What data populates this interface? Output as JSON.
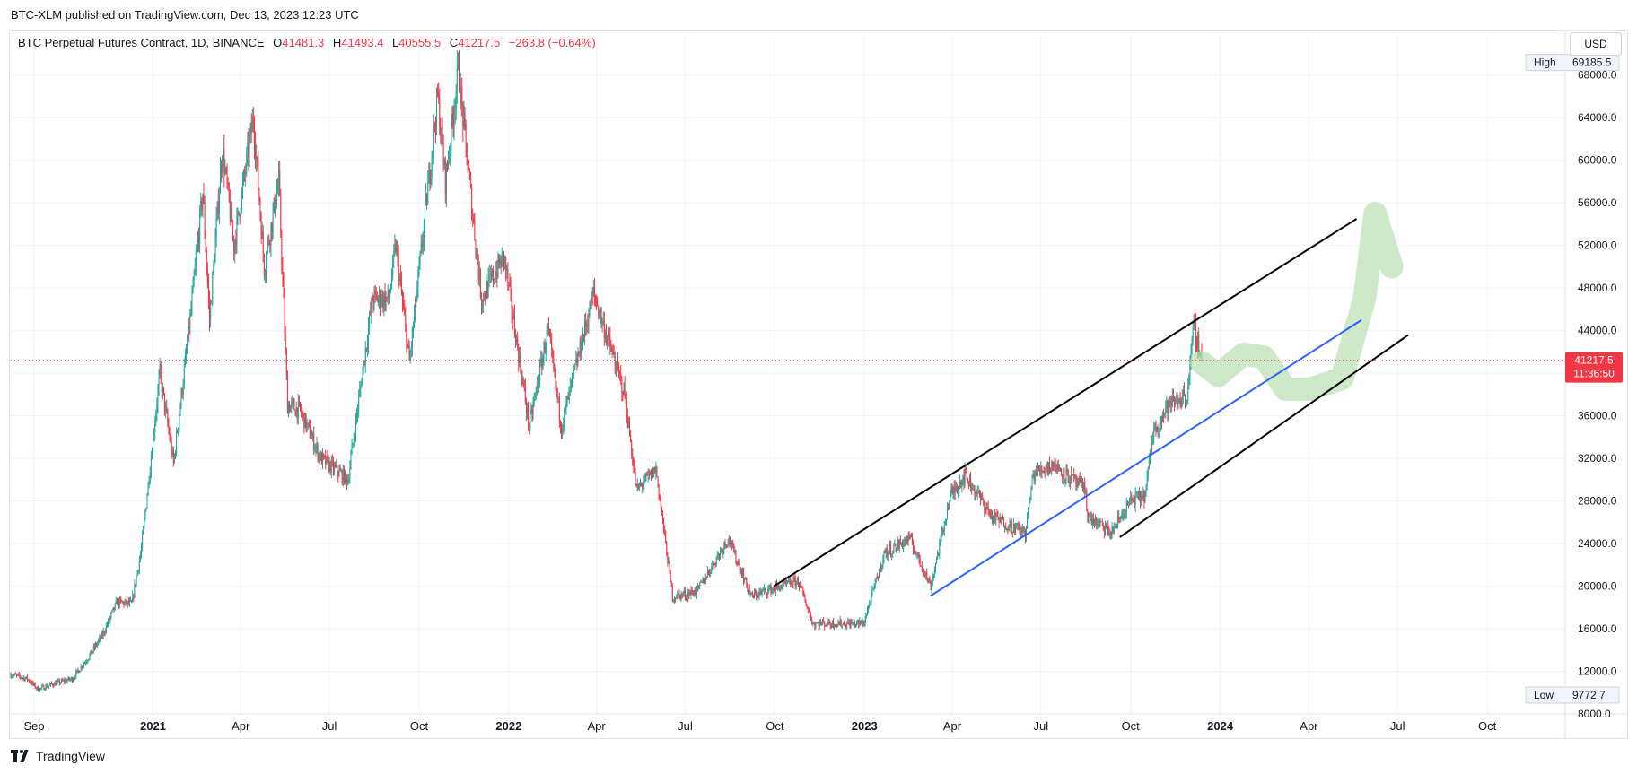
{
  "header": {
    "publish_line": "BTC-XLM published on TradingView.com, Dec 13, 2023 12:23 UTC"
  },
  "legend": {
    "symbol": "BTC Perpetual Futures Contract, 1D, BINANCE",
    "open_label": "O",
    "open": "41481.3",
    "high_label": "H",
    "high": "41493.4",
    "low_label": "L",
    "low": "40555.5",
    "close_label": "C",
    "close": "41217.5",
    "change": "−263.8 (−0.64%)"
  },
  "currency": "USD",
  "price_tag": {
    "price": "41217.5",
    "countdown": "11:36:50"
  },
  "high_marker": {
    "label": "High",
    "value": "69185.5"
  },
  "low_marker": {
    "label": "Low",
    "value": "9772.7"
  },
  "footer": {
    "brand": "TradingView"
  },
  "colors": {
    "up": "#26a69a",
    "down": "#f23645",
    "channel": "#000000",
    "midline": "#2962ff",
    "projection": "#b9dfb0"
  },
  "chart_data": {
    "type": "candlestick",
    "title": "",
    "ylim": [
      8000,
      70000
    ],
    "y_ticks": [
      8000,
      12000,
      16000,
      20000,
      24000,
      28000,
      32000,
      36000,
      40000,
      44000,
      48000,
      52000,
      56000,
      60000,
      64000,
      68000
    ],
    "y_tick_labels": [
      "8000.0",
      "12000.0",
      "16000.0",
      "20000.0",
      "24000.0",
      "28000.0",
      "32000.0",
      "36000.0",
      "40000.0",
      "44000.0",
      "48000.0",
      "52000.0",
      "56000.0",
      "60000.0",
      "64000.0",
      "68000.0"
    ],
    "x_ticks": [
      {
        "label": "Sep",
        "date": "2020-09-01",
        "bold": false
      },
      {
        "label": "2021",
        "date": "2021-01-01",
        "bold": true
      },
      {
        "label": "Apr",
        "date": "2021-04-01",
        "bold": false
      },
      {
        "label": "Jul",
        "date": "2021-07-01",
        "bold": false
      },
      {
        "label": "Oct",
        "date": "2021-10-01",
        "bold": false
      },
      {
        "label": "2022",
        "date": "2022-01-01",
        "bold": true
      },
      {
        "label": "Apr",
        "date": "2022-04-01",
        "bold": false
      },
      {
        "label": "Jul",
        "date": "2022-07-01",
        "bold": false
      },
      {
        "label": "Oct",
        "date": "2022-10-01",
        "bold": false
      },
      {
        "label": "2023",
        "date": "2023-01-01",
        "bold": true
      },
      {
        "label": "Apr",
        "date": "2023-04-01",
        "bold": false
      },
      {
        "label": "Jul",
        "date": "2023-07-01",
        "bold": false
      },
      {
        "label": "Oct",
        "date": "2023-10-01",
        "bold": false
      },
      {
        "label": "2024",
        "date": "2024-01-01",
        "bold": true
      },
      {
        "label": "Apr",
        "date": "2024-04-01",
        "bold": false
      },
      {
        "label": "Jul",
        "date": "2024-07-01",
        "bold": false
      },
      {
        "label": "Oct",
        "date": "2024-10-01",
        "bold": false
      }
    ],
    "x_range": [
      "2020-08-08",
      "2024-12-20"
    ],
    "price_path": [
      [
        "2020-08-08",
        11700
      ],
      [
        "2020-08-25",
        11300
      ],
      [
        "2020-09-05",
        10300
      ],
      [
        "2020-09-20",
        10800
      ],
      [
        "2020-10-10",
        11300
      ],
      [
        "2020-10-25",
        13100
      ],
      [
        "2020-11-10",
        15400
      ],
      [
        "2020-11-25",
        18500
      ],
      [
        "2020-12-10",
        18300
      ],
      [
        "2020-12-20",
        23500
      ],
      [
        "2021-01-08",
        40000
      ],
      [
        "2021-01-22",
        31500
      ],
      [
        "2021-02-08",
        45000
      ],
      [
        "2021-02-21",
        57000
      ],
      [
        "2021-02-28",
        45000
      ],
      [
        "2021-03-13",
        61200
      ],
      [
        "2021-03-25",
        52000
      ],
      [
        "2021-04-14",
        64000
      ],
      [
        "2021-04-25",
        50000
      ],
      [
        "2021-05-10",
        58000
      ],
      [
        "2021-05-19",
        37000
      ],
      [
        "2021-06-01",
        36500
      ],
      [
        "2021-06-22",
        32000
      ],
      [
        "2021-07-20",
        30000
      ],
      [
        "2021-08-14",
        47000
      ],
      [
        "2021-08-31",
        47000
      ],
      [
        "2021-09-07",
        52000
      ],
      [
        "2021-09-21",
        41000
      ],
      [
        "2021-10-20",
        66000
      ],
      [
        "2021-10-28",
        58000
      ],
      [
        "2021-11-10",
        68500
      ],
      [
        "2021-11-26",
        54000
      ],
      [
        "2021-12-04",
        47000
      ],
      [
        "2021-12-27",
        51000
      ],
      [
        "2022-01-22",
        35000
      ],
      [
        "2022-02-10",
        44000
      ],
      [
        "2022-02-24",
        35000
      ],
      [
        "2022-03-29",
        47500
      ],
      [
        "2022-04-30",
        38000
      ],
      [
        "2022-05-12",
        29000
      ],
      [
        "2022-06-01",
        31000
      ],
      [
        "2022-06-18",
        19000
      ],
      [
        "2022-07-13",
        19500
      ],
      [
        "2022-08-14",
        24500
      ],
      [
        "2022-09-07",
        19000
      ],
      [
        "2022-09-20",
        19500
      ],
      [
        "2022-10-25",
        20500
      ],
      [
        "2022-11-09",
        16500
      ],
      [
        "2022-12-31",
        16500
      ],
      [
        "2023-01-21",
        23000
      ],
      [
        "2023-02-16",
        24500
      ],
      [
        "2023-03-10",
        20000
      ],
      [
        "2023-03-30",
        28500
      ],
      [
        "2023-04-14",
        30500
      ],
      [
        "2023-05-12",
        26500
      ],
      [
        "2023-06-15",
        25000
      ],
      [
        "2023-06-23",
        30500
      ],
      [
        "2023-07-13",
        31500
      ],
      [
        "2023-08-16",
        29000
      ],
      [
        "2023-08-18",
        26500
      ],
      [
        "2023-09-11",
        25000
      ],
      [
        "2023-10-01",
        28000
      ],
      [
        "2023-10-16",
        28500
      ],
      [
        "2023-10-24",
        34500
      ],
      [
        "2023-11-09",
        37000
      ],
      [
        "2023-11-28",
        38000
      ],
      [
        "2023-12-05",
        44500
      ],
      [
        "2023-12-13",
        41217.5
      ]
    ],
    "last_price": 41217.5,
    "high": 69185.5,
    "low": 9772.7,
    "drawings": {
      "channel_upper": [
        [
          "2022-09-30",
          20000
        ],
        [
          "2024-05-20",
          54500
        ]
      ],
      "channel_lower": [
        [
          "2023-09-20",
          24600
        ],
        [
          "2024-07-12",
          43600
        ]
      ],
      "mid_line": [
        [
          "2023-03-10",
          19100
        ],
        [
          "2024-05-25",
          45000
        ]
      ],
      "projection_path": [
        [
          "2023-12-13",
          41000
        ],
        [
          "2023-12-30",
          39800
        ],
        [
          "2024-01-25",
          41800
        ],
        [
          "2024-02-15",
          41500
        ],
        [
          "2024-03-08",
          38500
        ],
        [
          "2024-04-02",
          38500
        ],
        [
          "2024-05-05",
          39500
        ],
        [
          "2024-05-28",
          47000
        ],
        [
          "2024-06-08",
          55000
        ],
        [
          "2024-06-25",
          50000
        ]
      ]
    }
  }
}
